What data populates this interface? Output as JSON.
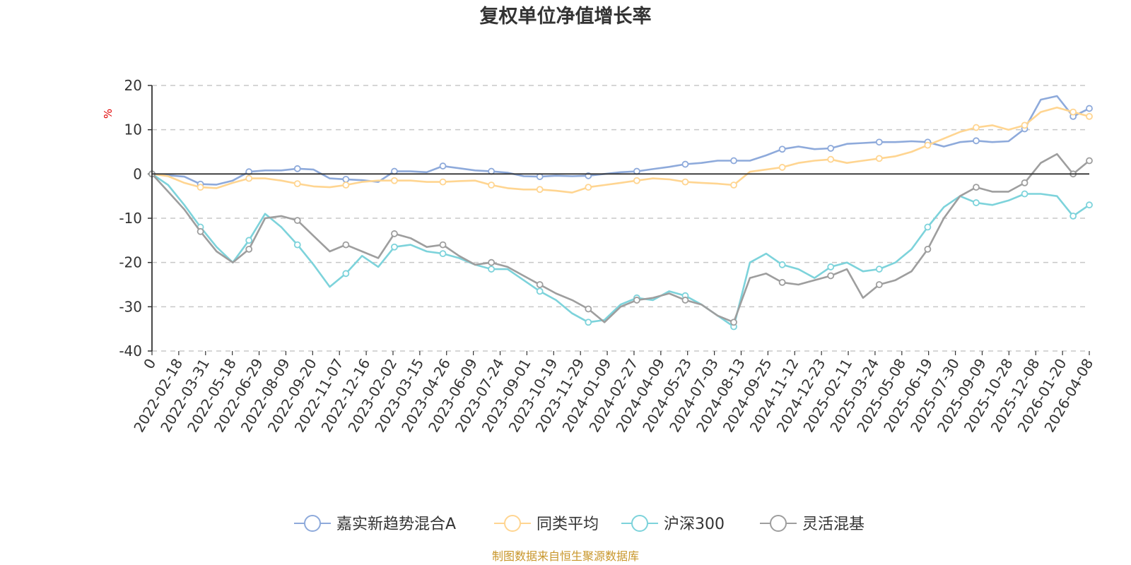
{
  "chart_data": {
    "type": "line",
    "title": "复权单位净值增长率",
    "ylabel": "%",
    "xlabel": "",
    "ylim": [
      -40,
      20
    ],
    "yticks": [
      20,
      10,
      0,
      -10,
      -20,
      -30,
      -40
    ],
    "x_labels": [
      "0",
      "2022-02-18",
      "2022-03-31",
      "2022-05-18",
      "2022-06-29",
      "2022-08-09",
      "2022-09-20",
      "2022-11-07",
      "2022-12-16",
      "2023-02-02",
      "2023-03-15",
      "2023-04-26",
      "2023-06-09",
      "2023-07-24",
      "2023-09-01",
      "2023-10-19",
      "2023-11-29",
      "2024-01-09",
      "2024-02-27",
      "2024-04-09",
      "2024-05-23",
      "2024-07-03",
      "2024-08-13",
      "2024-09-25",
      "2024-11-12",
      "2024-12-23",
      "2025-02-11",
      "2025-03-24",
      "2025-05-08",
      "2025-06-19",
      "2025-07-30",
      "2025-09-09",
      "2025-10-28",
      "2025-12-08",
      "2026-01-20",
      "2026-04-08"
    ],
    "grid": true,
    "legend_position": "bottom",
    "source": "制图数据来自恒生聚源数据库",
    "series": [
      {
        "name": "嘉实新趋势混合A",
        "color": "#8eaadb",
        "values": [
          0,
          -0.3,
          -0.6,
          -2.3,
          -2.4,
          -1.5,
          0.5,
          0.8,
          0.8,
          1.2,
          1.0,
          -1.0,
          -1.2,
          -1.4,
          -1.8,
          0.6,
          0.6,
          0.4,
          1.8,
          1.3,
          0.8,
          0.6,
          0.3,
          -0.5,
          -0.6,
          -0.4,
          -0.5,
          -0.4,
          0,
          0.4,
          0.6,
          1.1,
          1.6,
          2.2,
          2.5,
          3.0,
          3.0,
          3.0,
          4.2,
          5.6,
          6.2,
          5.6,
          5.8,
          6.8,
          7.0,
          7.2,
          7.2,
          7.4,
          7.2,
          6.2,
          7.2,
          7.5,
          7.2,
          7.4,
          10.2,
          16.8,
          17.6,
          13.0,
          14.8
        ]
      },
      {
        "name": "同类平均",
        "color": "#ffd591",
        "values": [
          0,
          -0.5,
          -2.0,
          -3.0,
          -3.2,
          -2.0,
          -1.0,
          -1.0,
          -1.5,
          -2.2,
          -2.8,
          -3.0,
          -2.5,
          -1.8,
          -1.5,
          -1.5,
          -1.5,
          -1.8,
          -1.8,
          -1.6,
          -1.5,
          -2.5,
          -3.2,
          -3.5,
          -3.5,
          -3.8,
          -4.2,
          -3.0,
          -2.5,
          -2.0,
          -1.5,
          -1.0,
          -1.2,
          -1.8,
          -2.0,
          -2.2,
          -2.5,
          0.5,
          1.0,
          1.5,
          2.5,
          3.0,
          3.3,
          2.5,
          3.0,
          3.5,
          4.0,
          5.0,
          6.5,
          8.0,
          9.5,
          10.5,
          11.0,
          10.0,
          11.0,
          14.0,
          15.0,
          14.0,
          13.0
        ]
      },
      {
        "name": "沪深300",
        "color": "#7dd3db",
        "values": [
          0,
          -2.5,
          -7.0,
          -12.0,
          -16.5,
          -20.0,
          -15.0,
          -9.0,
          -12.0,
          -16.0,
          -20.5,
          -25.5,
          -22.5,
          -18.5,
          -21.0,
          -16.5,
          -16.0,
          -17.5,
          -18.0,
          -19.0,
          -20.5,
          -21.5,
          -21.5,
          -24.0,
          -26.5,
          -28.5,
          -31.5,
          -33.5,
          -33.0,
          -29.5,
          -28.0,
          -28.5,
          -26.5,
          -27.5,
          -29.5,
          -32.0,
          -34.5,
          -20.0,
          -18.0,
          -20.5,
          -21.5,
          -23.5,
          -21.0,
          -20.0,
          -22.0,
          -21.5,
          -20.0,
          -17.0,
          -12.0,
          -7.5,
          -5.0,
          -6.5,
          -7.0,
          -6.0,
          -4.5,
          -4.5,
          -5.0,
          -9.5,
          -7.0
        ]
      },
      {
        "name": "灵活混基",
        "color": "#9e9e9e",
        "values": [
          0,
          -4.0,
          -8.0,
          -13.0,
          -17.5,
          -20.0,
          -17.0,
          -10.0,
          -9.5,
          -10.5,
          -14.0,
          -17.5,
          -16.0,
          -17.5,
          -19.0,
          -13.5,
          -14.5,
          -16.5,
          -16.0,
          -18.5,
          -20.5,
          -20.0,
          -21.0,
          -23.0,
          -25.0,
          -27.0,
          -28.5,
          -30.5,
          -33.5,
          -30.0,
          -28.5,
          -28.0,
          -27.0,
          -28.5,
          -29.5,
          -32.0,
          -33.5,
          -23.5,
          -22.5,
          -24.5,
          -25.0,
          -24.0,
          -23.0,
          -21.5,
          -28.0,
          -25.0,
          -24.0,
          -22.0,
          -17.0,
          -10.0,
          -5.0,
          -3.0,
          -4.0,
          -4.0,
          -2.0,
          2.5,
          4.5,
          0.0,
          3.0
        ]
      }
    ]
  }
}
